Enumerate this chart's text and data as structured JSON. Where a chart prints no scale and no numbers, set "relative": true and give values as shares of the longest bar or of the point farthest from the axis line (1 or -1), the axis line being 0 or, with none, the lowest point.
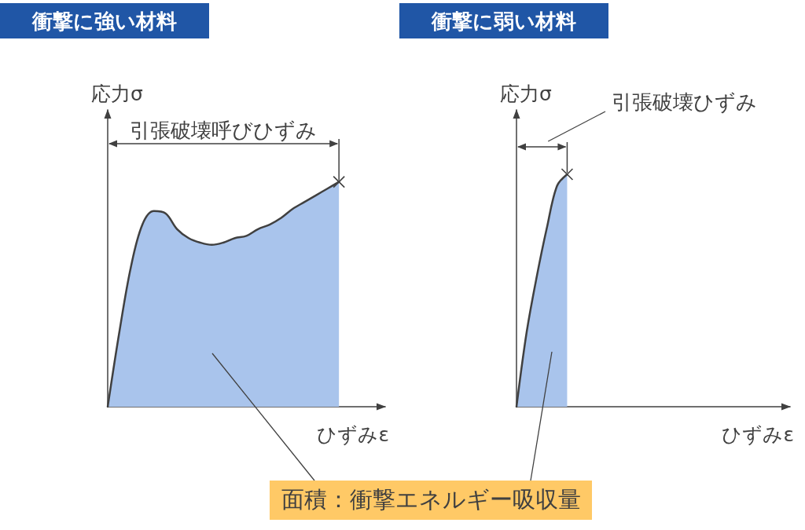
{
  "chart_data": [
    {
      "type": "area",
      "title": "衝撃に強い材料",
      "xlabel": "ひずみε",
      "ylabel": "応力σ",
      "annotations": [
        "引張破壊呼びひずみ",
        "面積：衝撃エネルギー吸収量"
      ],
      "categories": [
        null,
        null,
        null,
        null,
        null,
        null,
        null,
        null,
        null,
        null,
        null,
        null,
        null,
        null,
        null,
        null,
        null,
        null,
        null,
        null,
        null,
        null,
        null,
        null,
        null
      ],
      "values": [
        0,
        0.33,
        0.62,
        0.81,
        0.87,
        0.86,
        0.79,
        0.75,
        0.73,
        0.72,
        0.73,
        0.75,
        0.76,
        0.79,
        0.81,
        0.84,
        0.88,
        0.91,
        0.94,
        0.97,
        1,
        null,
        null,
        null,
        null
      ],
      "color": "#a9c4ec",
      "relative": true
    },
    {
      "type": "area",
      "title": "衝撃に弱い材料",
      "xlabel": "ひずみε",
      "ylabel": "応力σ",
      "annotations": [
        "引張破壊ひずみ"
      ],
      "categories": [
        null,
        null,
        null,
        null,
        null,
        null,
        null,
        null,
        null,
        null,
        null,
        null,
        null,
        null,
        null,
        null,
        null,
        null,
        null,
        null,
        null,
        null,
        null,
        null,
        null,
        null,
        null,
        null
      ],
      "values": [
        0,
        0.32,
        0.56,
        0.77,
        0.95,
        1,
        null,
        null,
        null,
        null,
        null,
        null,
        null,
        null,
        null,
        null,
        null,
        null,
        null,
        null,
        null,
        null,
        null,
        null,
        null,
        null,
        null,
        null
      ],
      "color": "#a9c4ec",
      "relative": true
    }
  ]
}
